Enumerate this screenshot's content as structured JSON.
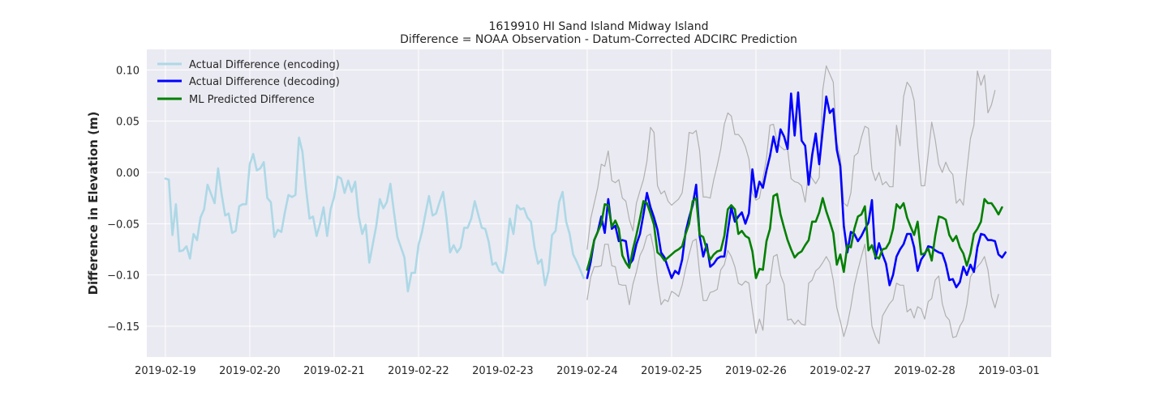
{
  "chart_data": {
    "type": "line",
    "title": "1619910 HI Sand Island Midway Island",
    "subtitle": "Difference = NOAA Observation - Datum-Corrected ADCIRC Prediction",
    "xlabel": "",
    "ylabel": "Difference in Elevation (m)",
    "xlim": [
      -0.22,
      10.5
    ],
    "ylim": [
      -0.18,
      0.12
    ],
    "x_ticks": [
      "2019-02-19",
      "2019-02-20",
      "2019-02-21",
      "2019-02-22",
      "2019-02-23",
      "2019-02-24",
      "2019-02-25",
      "2019-02-26",
      "2019-02-27",
      "2019-02-28",
      "2019-03-01"
    ],
    "y_ticks": [
      0.1,
      0.05,
      0.0,
      -0.05,
      -0.1,
      -0.15
    ],
    "y_tick_labels": [
      "0.10",
      "0.05",
      "0.00",
      "−0.05",
      "−0.10",
      "−0.15"
    ],
    "legend_position": "top-left",
    "grid": true,
    "colors": {
      "background": "#eaeaf2",
      "grid": "#ffffff",
      "encoding": "#add8e6",
      "decoding": "#0000ff",
      "predicted": "#008000",
      "bounds": "#b0b0b0"
    },
    "legend": [
      {
        "label": "Actual Difference (encoding)",
        "color": "#add8e6"
      },
      {
        "label": "Actual Difference (decoding)",
        "color": "#0000ff"
      },
      {
        "label": "ML Predicted Difference",
        "color": "#008000"
      }
    ],
    "series": [
      {
        "name": "Actual Difference (encoding)",
        "x_start": 0.0,
        "x_step": 0.04167,
        "values": [
          -0.006,
          -0.007,
          -0.061,
          -0.031,
          -0.077,
          -0.076,
          -0.072,
          -0.084,
          -0.06,
          -0.066,
          -0.044,
          -0.036,
          -0.012,
          -0.021,
          -0.03,
          0.004,
          -0.021,
          -0.042,
          -0.04,
          -0.059,
          -0.057,
          -0.033,
          -0.031,
          -0.031,
          0.008,
          0.018,
          0.002,
          0.004,
          0.01,
          -0.025,
          -0.029,
          -0.063,
          -0.056,
          -0.058,
          -0.039,
          -0.022,
          -0.024,
          -0.022,
          0.034,
          0.02,
          -0.015,
          -0.045,
          -0.043,
          -0.062,
          -0.05,
          -0.034,
          -0.062,
          -0.036,
          -0.024,
          -0.004,
          -0.006,
          -0.02,
          -0.008,
          -0.019,
          -0.009,
          -0.043,
          -0.06,
          -0.051,
          -0.088,
          -0.07,
          -0.052,
          -0.026,
          -0.035,
          -0.029,
          -0.011,
          -0.038,
          -0.063,
          -0.073,
          -0.083,
          -0.116,
          -0.098,
          -0.098,
          -0.071,
          -0.058,
          -0.04,
          -0.023,
          -0.042,
          -0.04,
          -0.029,
          -0.019,
          -0.045,
          -0.078,
          -0.071,
          -0.078,
          -0.073,
          -0.054,
          -0.054,
          -0.045,
          -0.028,
          -0.041,
          -0.054,
          -0.055,
          -0.068,
          -0.09,
          -0.088,
          -0.096,
          -0.098,
          -0.076,
          -0.045,
          -0.06,
          -0.032,
          -0.036,
          -0.035,
          -0.044,
          -0.048,
          -0.073,
          -0.089,
          -0.085,
          -0.11,
          -0.096,
          -0.061,
          -0.057,
          -0.029,
          -0.019,
          -0.048,
          -0.06,
          -0.08,
          -0.087,
          -0.095,
          -0.103
        ]
      },
      {
        "name": "Actual Difference (decoding)",
        "x_start": 5.0,
        "x_step": 0.04167,
        "values": [
          -0.103,
          -0.087,
          -0.066,
          -0.058,
          -0.043,
          -0.059,
          -0.026,
          -0.055,
          -0.052,
          -0.067,
          -0.066,
          -0.067,
          -0.09,
          -0.085,
          -0.07,
          -0.06,
          -0.041,
          -0.02,
          -0.034,
          -0.044,
          -0.056,
          -0.078,
          -0.083,
          -0.093,
          -0.103,
          -0.096,
          -0.099,
          -0.085,
          -0.058,
          -0.044,
          -0.032,
          -0.012,
          -0.062,
          -0.082,
          -0.07,
          -0.092,
          -0.089,
          -0.084,
          -0.082,
          -0.082,
          -0.057,
          -0.034,
          -0.048,
          -0.043,
          -0.039,
          -0.05,
          -0.04,
          0.003,
          -0.024,
          -0.009,
          -0.015,
          0.002,
          0.016,
          0.035,
          0.02,
          0.042,
          0.035,
          0.023,
          0.077,
          0.036,
          0.078,
          0.031,
          0.026,
          -0.012,
          0.017,
          0.038,
          0.008,
          0.041,
          0.074,
          0.058,
          0.062,
          0.022,
          0.006,
          -0.052,
          -0.078,
          -0.058,
          -0.06,
          -0.067,
          -0.062,
          -0.055,
          -0.049,
          -0.027,
          -0.084,
          -0.069,
          -0.08,
          -0.089,
          -0.11,
          -0.1,
          -0.082,
          -0.075,
          -0.07,
          -0.06,
          -0.06,
          -0.073,
          -0.096,
          -0.085,
          -0.08,
          -0.072,
          -0.073,
          -0.076,
          -0.078,
          -0.079,
          -0.089,
          -0.105,
          -0.104,
          -0.112,
          -0.107,
          -0.092,
          -0.1,
          -0.09,
          -0.097,
          -0.073,
          -0.06,
          -0.061,
          -0.066,
          -0.066,
          -0.067,
          -0.08,
          -0.083,
          -0.078
        ]
      },
      {
        "name": "ML Predicted Difference",
        "x_start": 5.0,
        "x_step": 0.04167,
        "values": [
          -0.095,
          -0.082,
          -0.066,
          -0.058,
          -0.05,
          -0.031,
          -0.032,
          -0.053,
          -0.047,
          -0.055,
          -0.081,
          -0.088,
          -0.093,
          -0.075,
          -0.061,
          -0.045,
          -0.028,
          -0.03,
          -0.04,
          -0.051,
          -0.078,
          -0.081,
          -0.086,
          -0.083,
          -0.08,
          -0.077,
          -0.075,
          -0.072,
          -0.06,
          -0.05,
          -0.028,
          -0.025,
          -0.061,
          -0.063,
          -0.075,
          -0.085,
          -0.08,
          -0.077,
          -0.076,
          -0.062,
          -0.036,
          -0.032,
          -0.036,
          -0.06,
          -0.057,
          -0.062,
          -0.064,
          -0.077,
          -0.103,
          -0.094,
          -0.095,
          -0.067,
          -0.055,
          -0.023,
          -0.021,
          -0.041,
          -0.054,
          -0.066,
          -0.075,
          -0.083,
          -0.079,
          -0.077,
          -0.071,
          -0.066,
          -0.048,
          -0.048,
          -0.039,
          -0.025,
          -0.038,
          -0.048,
          -0.059,
          -0.09,
          -0.08,
          -0.097,
          -0.071,
          -0.073,
          -0.055,
          -0.043,
          -0.041,
          -0.033,
          -0.076,
          -0.071,
          -0.082,
          -0.084,
          -0.075,
          -0.074,
          -0.068,
          -0.055,
          -0.031,
          -0.035,
          -0.03,
          -0.044,
          -0.053,
          -0.061,
          -0.048,
          -0.08,
          -0.079,
          -0.074,
          -0.086,
          -0.062,
          -0.043,
          -0.044,
          -0.046,
          -0.061,
          -0.067,
          -0.062,
          -0.073,
          -0.079,
          -0.091,
          -0.079,
          -0.06,
          -0.055,
          -0.048,
          -0.026,
          -0.03,
          -0.03,
          -0.035,
          -0.041,
          -0.034
        ]
      },
      {
        "name": "Upper bound",
        "x_start": 5.0,
        "x_step": 0.04167,
        "values": [
          -0.075,
          -0.045,
          -0.03,
          -0.015,
          0.008,
          0.006,
          0.021,
          -0.008,
          -0.01,
          -0.007,
          -0.025,
          -0.028,
          -0.046,
          -0.057,
          -0.03,
          -0.018,
          -0.007,
          0.011,
          0.044,
          0.039,
          -0.013,
          -0.021,
          -0.018,
          -0.028,
          -0.032,
          -0.029,
          -0.026,
          -0.02,
          0.006,
          0.039,
          0.038,
          0.041,
          0.021,
          -0.024,
          -0.024,
          -0.025,
          -0.007,
          0.007,
          0.023,
          0.047,
          0.058,
          0.055,
          0.037,
          0.037,
          0.033,
          0.025,
          0.013,
          -0.02,
          -0.027,
          -0.025,
          -0.006,
          0.014,
          0.046,
          0.047,
          0.03,
          0.025,
          0.022,
          0.023,
          -0.006,
          -0.009,
          -0.01,
          -0.013,
          -0.029,
          0.001,
          -0.006,
          -0.011,
          -0.005,
          0.08,
          0.104,
          0.096,
          0.088,
          0.03,
          0.015,
          -0.03,
          -0.033,
          -0.02,
          0.016,
          0.019,
          0.034,
          0.045,
          0.043,
          0.003,
          -0.008,
          0.0,
          -0.012,
          -0.009,
          -0.014,
          -0.014,
          0.046,
          0.026,
          0.074,
          0.088,
          0.083,
          0.07,
          0.026,
          -0.013,
          -0.013,
          0.018,
          0.049,
          0.032,
          0.008,
          0.0,
          0.01,
          0.002,
          -0.002,
          -0.03,
          -0.026,
          -0.032,
          0.002,
          0.033,
          0.046,
          0.099,
          0.085,
          0.095,
          0.058,
          0.066,
          0.08
        ]
      },
      {
        "name": "Lower bound",
        "x_start": 5.0,
        "x_step": 0.04167,
        "values": [
          -0.124,
          -0.102,
          -0.092,
          -0.092,
          -0.091,
          -0.07,
          -0.07,
          -0.091,
          -0.092,
          -0.109,
          -0.11,
          -0.11,
          -0.129,
          -0.109,
          -0.097,
          -0.081,
          -0.074,
          -0.062,
          -0.06,
          -0.076,
          -0.106,
          -0.129,
          -0.124,
          -0.126,
          -0.116,
          -0.118,
          -0.121,
          -0.11,
          -0.094,
          -0.08,
          -0.067,
          -0.065,
          -0.099,
          -0.125,
          -0.125,
          -0.117,
          -0.116,
          -0.114,
          -0.095,
          -0.09,
          -0.076,
          -0.082,
          -0.092,
          -0.108,
          -0.11,
          -0.106,
          -0.108,
          -0.134,
          -0.157,
          -0.143,
          -0.154,
          -0.11,
          -0.107,
          -0.082,
          -0.08,
          -0.1,
          -0.109,
          -0.144,
          -0.143,
          -0.148,
          -0.144,
          -0.148,
          -0.149,
          -0.108,
          -0.105,
          -0.096,
          -0.093,
          -0.088,
          -0.082,
          -0.088,
          -0.105,
          -0.132,
          -0.145,
          -0.16,
          -0.148,
          -0.131,
          -0.11,
          -0.095,
          -0.082,
          -0.07,
          -0.11,
          -0.15,
          -0.16,
          -0.167,
          -0.14,
          -0.134,
          -0.128,
          -0.124,
          -0.108,
          -0.11,
          -0.11,
          -0.136,
          -0.133,
          -0.142,
          -0.131,
          -0.133,
          -0.143,
          -0.126,
          -0.123,
          -0.105,
          -0.101,
          -0.128,
          -0.14,
          -0.144,
          -0.161,
          -0.16,
          -0.15,
          -0.144,
          -0.129,
          -0.102,
          -0.096,
          -0.092,
          -0.088,
          -0.082,
          -0.095,
          -0.121,
          -0.132,
          -0.119
        ]
      }
    ]
  }
}
